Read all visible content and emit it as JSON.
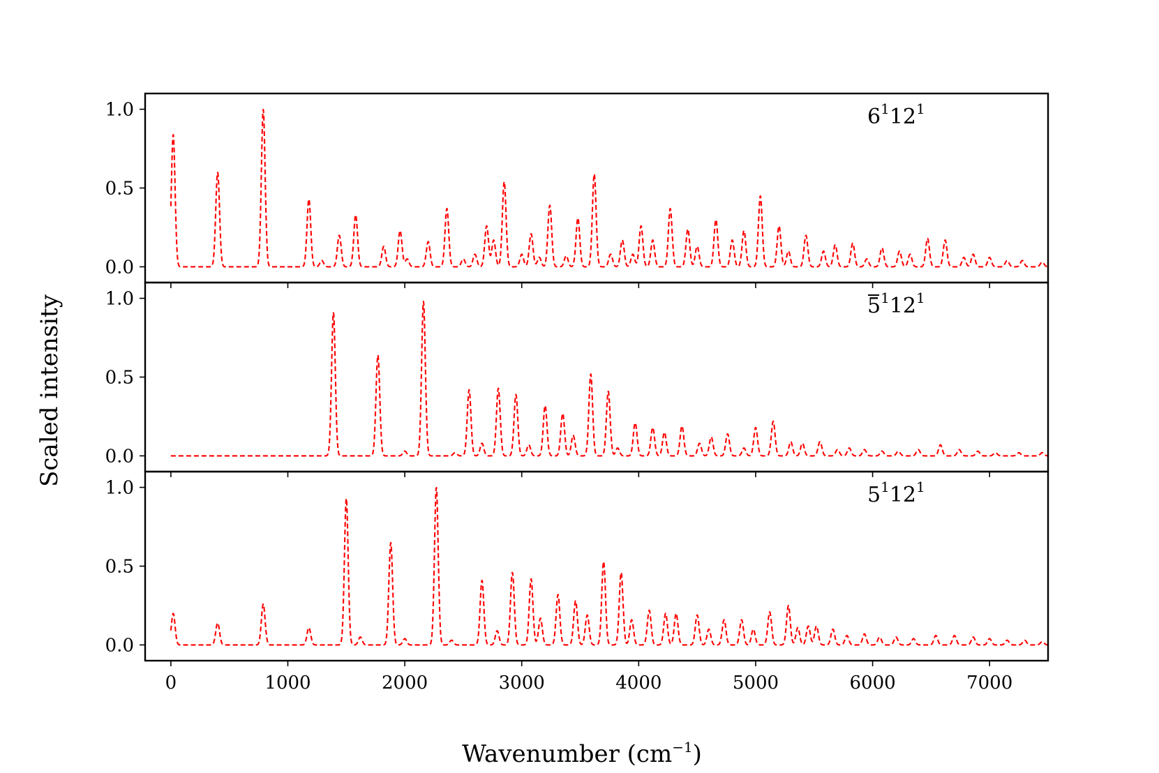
{
  "chart_data": {
    "type": "line",
    "xlabel": "Wavenumber (cm",
    "xlabel_sup": "−1",
    "xlabel_close": ")",
    "ylabel": "Scaled intensity",
    "xlim": [
      -220,
      7500
    ],
    "xticks": [
      "0",
      "1000",
      "2000",
      "3000",
      "4000",
      "5000",
      "6000",
      "7000"
    ],
    "xtick_values": [
      0,
      1000,
      2000,
      3000,
      4000,
      5000,
      6000,
      7000
    ],
    "ylim": [
      -0.1,
      1.1
    ],
    "yticks": [
      "0.0",
      "0.5",
      "1.0"
    ],
    "ytick_values": [
      0,
      0.5,
      1.0
    ],
    "line_color": "#ff0000",
    "line_style": "dashed",
    "peak_width": 16,
    "panels": [
      {
        "label_base": "6",
        "label_sup1": "1",
        "label_mid": "12",
        "label_sup2": "1",
        "overline": false,
        "peaks": [
          [
            20,
            0.84
          ],
          [
            400,
            0.6
          ],
          [
            790,
            1.0
          ],
          [
            1180,
            0.43
          ],
          [
            1290,
            0.04
          ],
          [
            1440,
            0.2
          ],
          [
            1580,
            0.33
          ],
          [
            1820,
            0.13
          ],
          [
            1960,
            0.23
          ],
          [
            2020,
            0.05
          ],
          [
            2200,
            0.16
          ],
          [
            2360,
            0.37
          ],
          [
            2500,
            0.05
          ],
          [
            2600,
            0.08
          ],
          [
            2700,
            0.26
          ],
          [
            2760,
            0.17
          ],
          [
            2850,
            0.54
          ],
          [
            3000,
            0.08
          ],
          [
            3080,
            0.21
          ],
          [
            3150,
            0.06
          ],
          [
            3240,
            0.39
          ],
          [
            3380,
            0.07
          ],
          [
            3480,
            0.31
          ],
          [
            3620,
            0.59
          ],
          [
            3760,
            0.08
          ],
          [
            3860,
            0.17
          ],
          [
            3950,
            0.08
          ],
          [
            4020,
            0.26
          ],
          [
            4120,
            0.17
          ],
          [
            4270,
            0.37
          ],
          [
            4420,
            0.24
          ],
          [
            4500,
            0.13
          ],
          [
            4660,
            0.3
          ],
          [
            4800,
            0.17
          ],
          [
            4900,
            0.23
          ],
          [
            5040,
            0.45
          ],
          [
            5200,
            0.26
          ],
          [
            5280,
            0.1
          ],
          [
            5430,
            0.2
          ],
          [
            5580,
            0.1
          ],
          [
            5680,
            0.14
          ],
          [
            5830,
            0.15
          ],
          [
            5950,
            0.05
          ],
          [
            6080,
            0.12
          ],
          [
            6230,
            0.1
          ],
          [
            6320,
            0.08
          ],
          [
            6470,
            0.18
          ],
          [
            6620,
            0.17
          ],
          [
            6780,
            0.06
          ],
          [
            6860,
            0.08
          ],
          [
            7000,
            0.06
          ],
          [
            7150,
            0.04
          ],
          [
            7280,
            0.04
          ],
          [
            7450,
            0.03
          ]
        ]
      },
      {
        "label_base": "5",
        "label_sup1": "1",
        "label_mid": "12",
        "label_sup2": "1",
        "overline": true,
        "peaks": [
          [
            1390,
            0.91
          ],
          [
            1770,
            0.64
          ],
          [
            2000,
            0.03
          ],
          [
            2160,
            0.98
          ],
          [
            2430,
            0.02
          ],
          [
            2550,
            0.42
          ],
          [
            2660,
            0.08
          ],
          [
            2800,
            0.43
          ],
          [
            2950,
            0.39
          ],
          [
            3060,
            0.07
          ],
          [
            3200,
            0.32
          ],
          [
            3350,
            0.27
          ],
          [
            3440,
            0.13
          ],
          [
            3590,
            0.52
          ],
          [
            3740,
            0.41
          ],
          [
            3820,
            0.05
          ],
          [
            3970,
            0.21
          ],
          [
            4120,
            0.18
          ],
          [
            4220,
            0.15
          ],
          [
            4370,
            0.19
          ],
          [
            4520,
            0.08
          ],
          [
            4620,
            0.12
          ],
          [
            4760,
            0.14
          ],
          [
            4900,
            0.05
          ],
          [
            5000,
            0.18
          ],
          [
            5150,
            0.22
          ],
          [
            5300,
            0.09
          ],
          [
            5400,
            0.08
          ],
          [
            5550,
            0.09
          ],
          [
            5700,
            0.04
          ],
          [
            5800,
            0.05
          ],
          [
            5930,
            0.04
          ],
          [
            6080,
            0.03
          ],
          [
            6220,
            0.03
          ],
          [
            6390,
            0.04
          ],
          [
            6580,
            0.07
          ],
          [
            6740,
            0.04
          ],
          [
            6900,
            0.03
          ],
          [
            7050,
            0.02
          ],
          [
            7250,
            0.02
          ],
          [
            7450,
            0.02
          ]
        ]
      },
      {
        "label_base": "5",
        "label_sup1": "1",
        "label_mid": "12",
        "label_sup2": "1",
        "overline": false,
        "peaks": [
          [
            20,
            0.2
          ],
          [
            400,
            0.14
          ],
          [
            790,
            0.26
          ],
          [
            1180,
            0.11
          ],
          [
            1500,
            0.93
          ],
          [
            1620,
            0.05
          ],
          [
            1880,
            0.65
          ],
          [
            2000,
            0.04
          ],
          [
            2270,
            1.0
          ],
          [
            2400,
            0.03
          ],
          [
            2660,
            0.41
          ],
          [
            2790,
            0.09
          ],
          [
            2920,
            0.46
          ],
          [
            3080,
            0.42
          ],
          [
            3160,
            0.17
          ],
          [
            3310,
            0.32
          ],
          [
            3460,
            0.28
          ],
          [
            3560,
            0.19
          ],
          [
            3700,
            0.53
          ],
          [
            3850,
            0.46
          ],
          [
            3940,
            0.16
          ],
          [
            4090,
            0.22
          ],
          [
            4230,
            0.2
          ],
          [
            4320,
            0.2
          ],
          [
            4500,
            0.19
          ],
          [
            4600,
            0.1
          ],
          [
            4730,
            0.16
          ],
          [
            4880,
            0.16
          ],
          [
            4980,
            0.1
          ],
          [
            5120,
            0.21
          ],
          [
            5280,
            0.25
          ],
          [
            5360,
            0.11
          ],
          [
            5450,
            0.12
          ],
          [
            5520,
            0.12
          ],
          [
            5660,
            0.1
          ],
          [
            5780,
            0.06
          ],
          [
            5930,
            0.07
          ],
          [
            6060,
            0.05
          ],
          [
            6200,
            0.05
          ],
          [
            6350,
            0.04
          ],
          [
            6540,
            0.06
          ],
          [
            6700,
            0.06
          ],
          [
            6860,
            0.05
          ],
          [
            7000,
            0.04
          ],
          [
            7150,
            0.03
          ],
          [
            7300,
            0.03
          ],
          [
            7450,
            0.02
          ]
        ]
      }
    ]
  }
}
